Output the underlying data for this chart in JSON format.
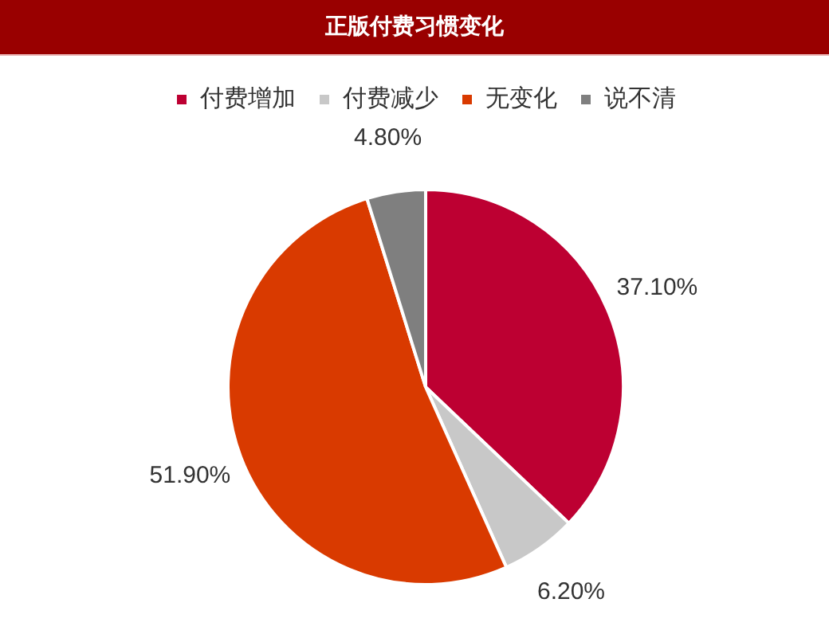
{
  "chart_data": {
    "type": "pie",
    "title": "正版付费习惯变化",
    "categories": [
      "付费增加",
      "付费减少",
      "无变化",
      "说不清"
    ],
    "values": [
      37.1,
      6.2,
      51.9,
      4.8
    ],
    "colors": [
      "#bd0032",
      "#c8c8c8",
      "#d93a00",
      "#7f7f7f"
    ],
    "value_labels": [
      "37.10%",
      "6.20%",
      "51.90%",
      "4.80%"
    ],
    "legend": "top"
  }
}
